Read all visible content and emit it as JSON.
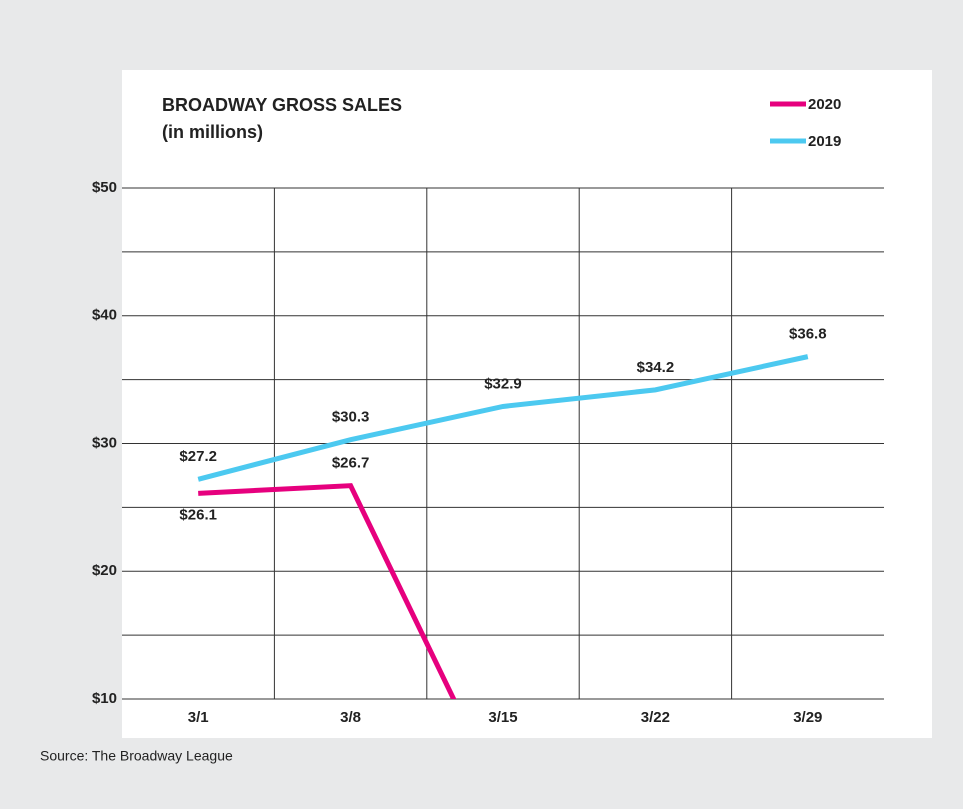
{
  "chart_data": {
    "type": "line",
    "title": "BROADWAY GROSS SALES",
    "subtitle": "(in millions)",
    "source": "Source: The Broadway League",
    "categories": [
      "3/1",
      "3/8",
      "3/15",
      "3/22",
      "3/29"
    ],
    "series": [
      {
        "name": "2020",
        "color": "#e6007e",
        "values": [
          26.1,
          26.7,
          2,
          null,
          null
        ],
        "value_labels": [
          "$26.1",
          "$26.7",
          null,
          null,
          null
        ]
      },
      {
        "name": "2019",
        "color": "#4cc9f0",
        "values": [
          27.2,
          30.3,
          32.9,
          34.2,
          36.8
        ],
        "value_labels": [
          "$27.2",
          "$30.3",
          "$32.9",
          "$34.2",
          "$36.8"
        ]
      }
    ],
    "ylim": [
      10,
      50
    ],
    "yticks": [
      {
        "value": 10,
        "label": "$10"
      },
      {
        "value": 20,
        "label": "$20"
      },
      {
        "value": 30,
        "label": "$30"
      },
      {
        "value": 40,
        "label": "$40"
      },
      {
        "value": 50,
        "label": "$50"
      }
    ],
    "minor_yticks": [
      15,
      25,
      35,
      45
    ],
    "grid": true,
    "legend": "top-right"
  }
}
